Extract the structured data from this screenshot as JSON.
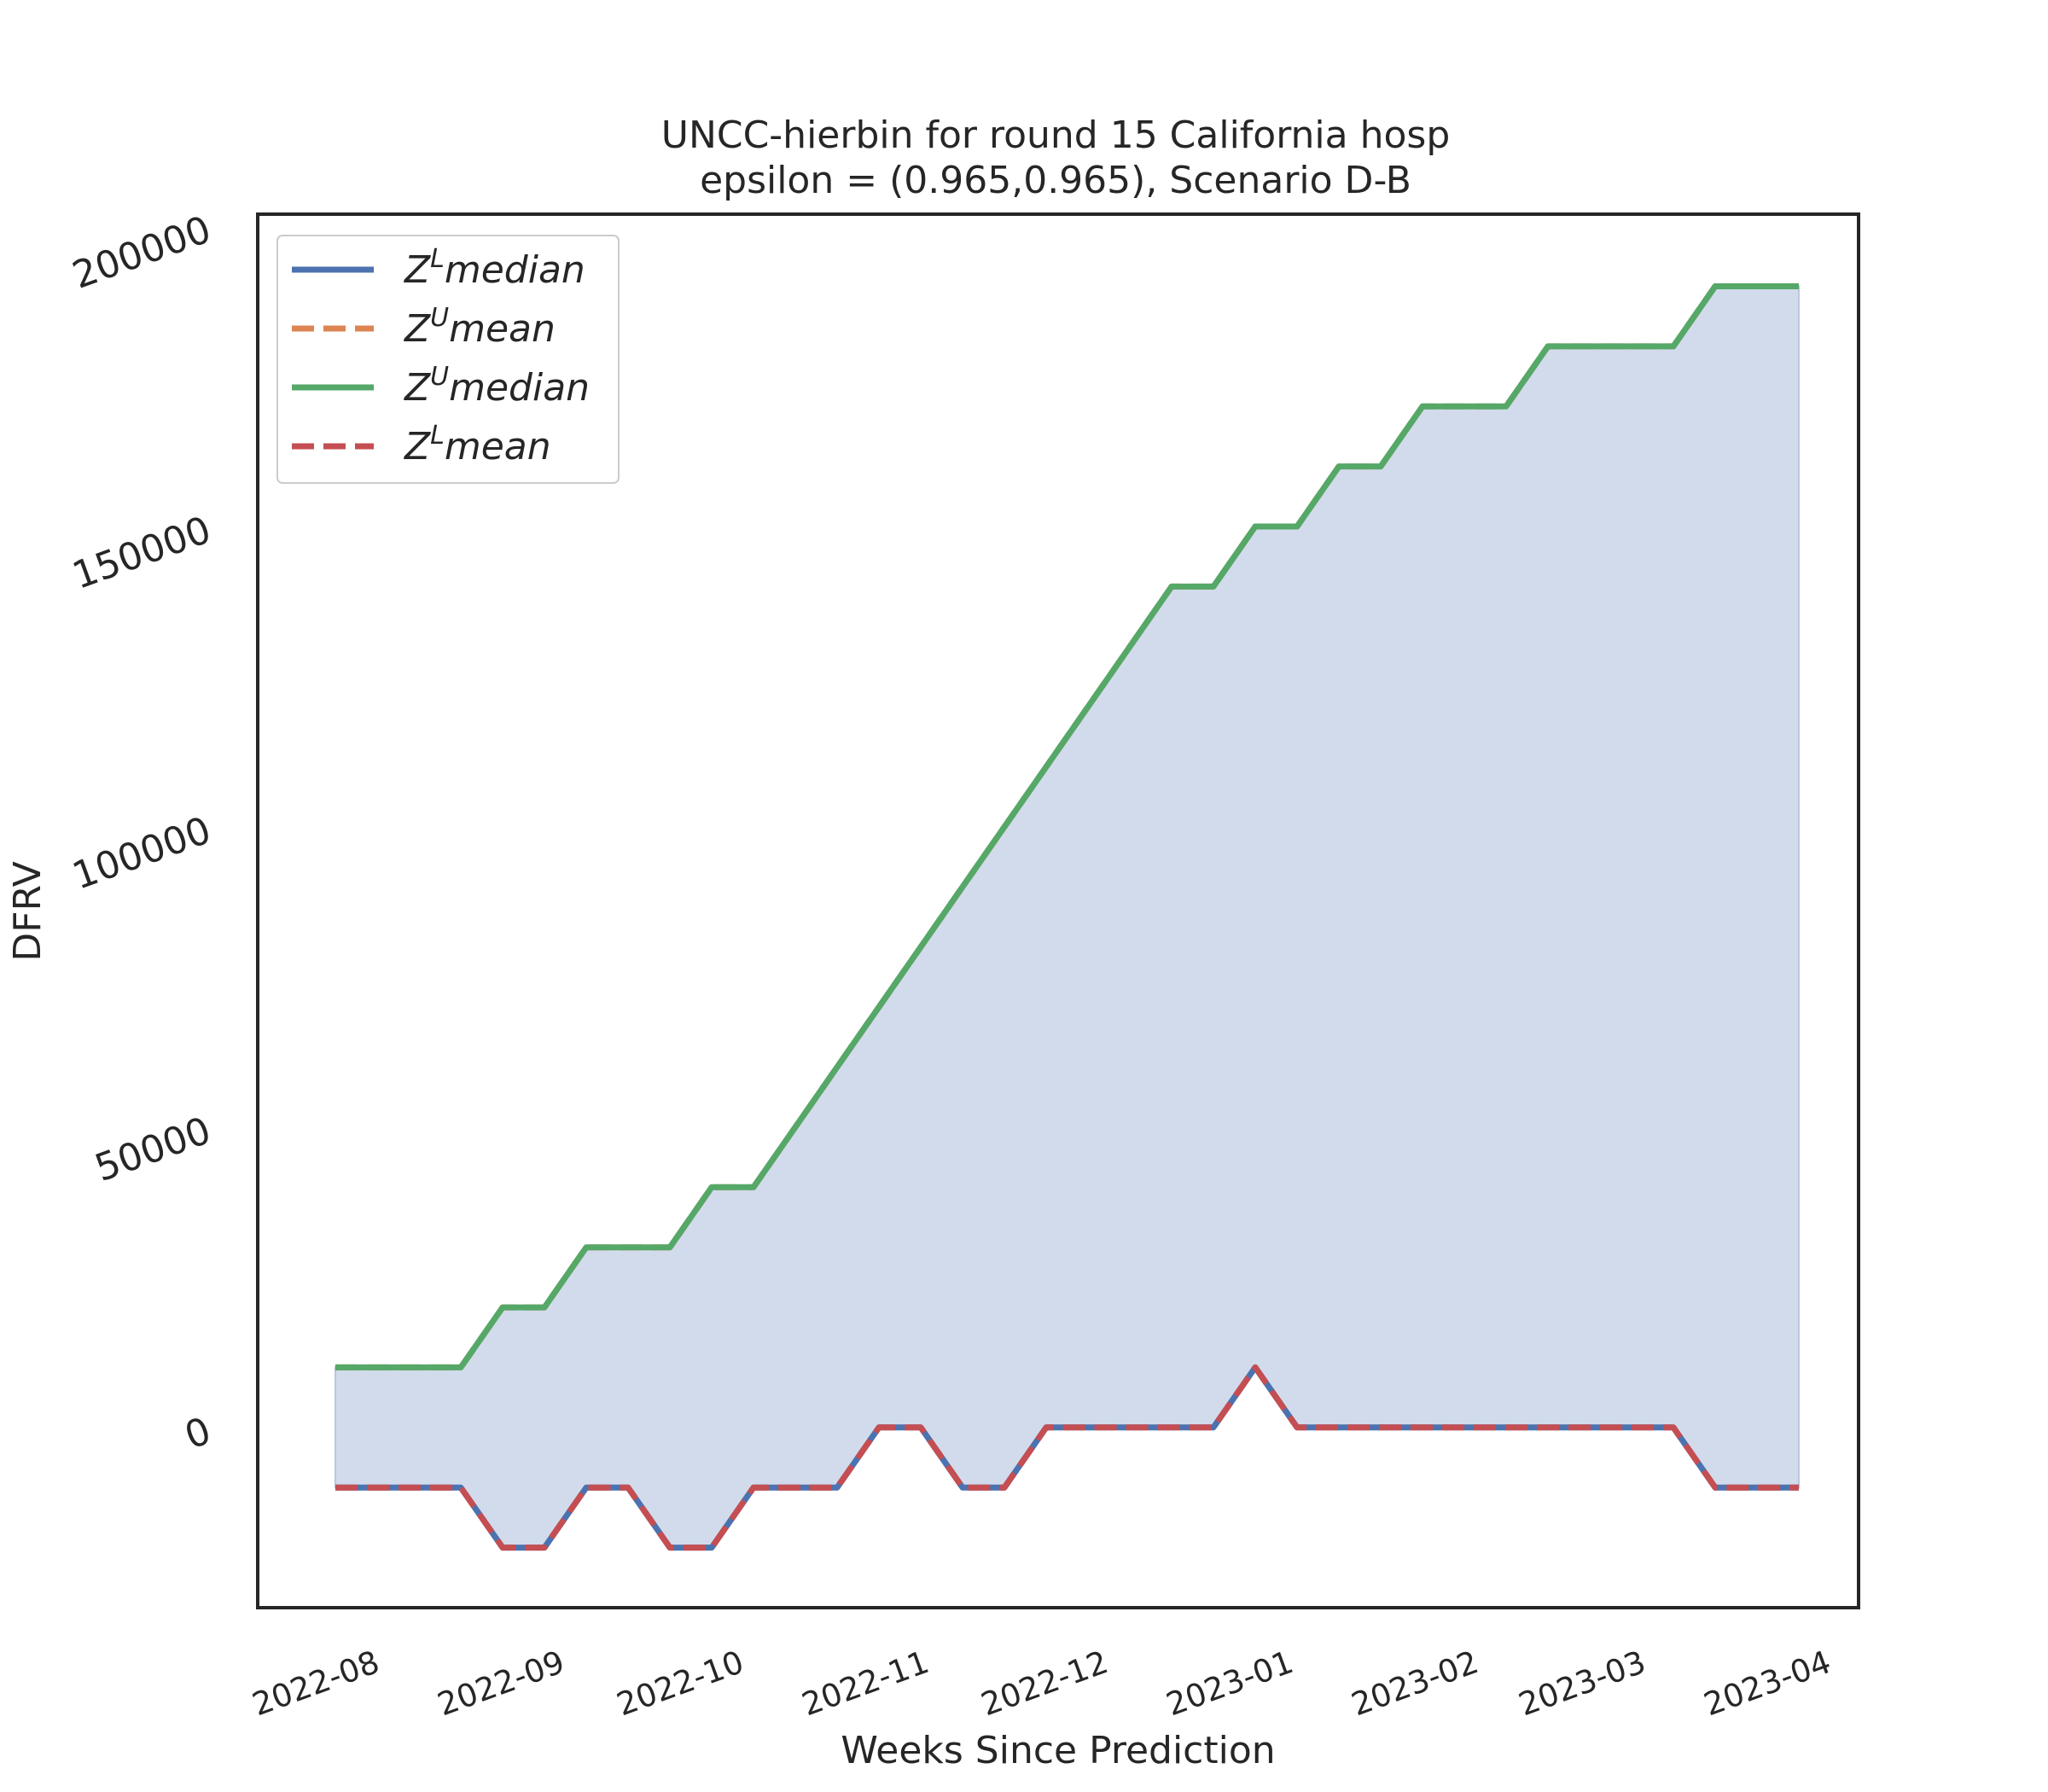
{
  "chart_data": {
    "type": "line",
    "title_line1": "UNCC-hierbin for round 15 California  hosp",
    "title_line2": "epsilon = (0.965,0.965), Scenario D-B",
    "xlabel": "Weeks Since Prediction",
    "ylabel": "DFRV",
    "ylim": [
      -30000,
      202000
    ],
    "y_ticks": [
      0,
      50000,
      100000,
      150000,
      200000
    ],
    "y_tick_labels": [
      "0",
      "50000",
      "100000",
      "150000",
      "200000"
    ],
    "xlim": [
      "2022-07-13",
      "2023-04-07"
    ],
    "x_ticks": [
      "2022-08-01",
      "2022-09-01",
      "2022-10-01",
      "2022-11-01",
      "2022-12-01",
      "2023-01-01",
      "2023-02-01",
      "2023-03-01",
      "2023-04-01"
    ],
    "x_tick_labels": [
      "2022-08",
      "2022-09",
      "2022-10",
      "2022-11",
      "2022-12",
      "2023-01",
      "2023-02",
      "2023-03",
      "2023-04"
    ],
    "grid": false,
    "legend_position": "top-left",
    "fill_color": "#d2dbeb",
    "dates": [
      "2022-07-26",
      "2022-08-02",
      "2022-08-09",
      "2022-08-16",
      "2022-08-23",
      "2022-08-30",
      "2022-09-06",
      "2022-09-13",
      "2022-09-20",
      "2022-09-27",
      "2022-10-04",
      "2022-10-11",
      "2022-10-18",
      "2022-10-25",
      "2022-11-01",
      "2022-11-08",
      "2022-11-15",
      "2022-11-22",
      "2022-11-29",
      "2022-12-06",
      "2022-12-13",
      "2022-12-20",
      "2022-12-27",
      "2023-01-03",
      "2023-01-10",
      "2023-01-17",
      "2023-01-24",
      "2023-01-31",
      "2023-02-07",
      "2023-02-14",
      "2023-02-21",
      "2023-02-28",
      "2023-03-07",
      "2023-03-14",
      "2023-03-21",
      "2023-03-28"
    ],
    "series": [
      {
        "name": "$Z^L median$",
        "color": "#4c72b0",
        "dash": "solid",
        "values": [
          -10000,
          -10000,
          -10000,
          -10000,
          -20000,
          -20000,
          -10000,
          -10000,
          -20000,
          -20000,
          -10000,
          -10000,
          -10000,
          0,
          0,
          -10000,
          -10000,
          0,
          0,
          0,
          0,
          0,
          10000,
          0,
          0,
          0,
          0,
          0,
          0,
          0,
          0,
          0,
          0,
          -10000,
          -10000,
          -10000
        ]
      },
      {
        "name": "$Z^U mean$",
        "color": "#dd8452",
        "dash": "dashed",
        "values": [
          10000,
          10000,
          10000,
          10000,
          20000,
          20000,
          30000,
          30000,
          30000,
          40000,
          40000,
          50000,
          60000,
          70000,
          80000,
          90000,
          100000,
          110000,
          120000,
          130000,
          140000,
          140000,
          150000,
          150000,
          160000,
          160000,
          170000,
          170000,
          170000,
          180000,
          180000,
          180000,
          180000,
          190000,
          190000,
          190000
        ]
      },
      {
        "name": "$Z^U median$",
        "color": "#55a868",
        "dash": "solid",
        "values": [
          10000,
          10000,
          10000,
          10000,
          20000,
          20000,
          30000,
          30000,
          30000,
          40000,
          40000,
          50000,
          60000,
          70000,
          80000,
          90000,
          100000,
          110000,
          120000,
          130000,
          140000,
          140000,
          150000,
          150000,
          160000,
          160000,
          170000,
          170000,
          170000,
          180000,
          180000,
          180000,
          180000,
          190000,
          190000,
          190000
        ]
      },
      {
        "name": "$Z^L mean$",
        "color": "#c44e52",
        "dash": "dashed",
        "values": [
          -10000,
          -10000,
          -10000,
          -10000,
          -20000,
          -20000,
          -10000,
          -10000,
          -20000,
          -20000,
          -10000,
          -10000,
          -10000,
          0,
          0,
          -10000,
          -10000,
          0,
          0,
          0,
          0,
          0,
          10000,
          0,
          0,
          0,
          0,
          0,
          0,
          0,
          0,
          0,
          0,
          -10000,
          -10000,
          -10000
        ]
      }
    ],
    "legend": [
      {
        "base": "Z",
        "sup": "L",
        "word": "median"
      },
      {
        "base": "Z",
        "sup": "U",
        "word": "mean"
      },
      {
        "base": "Z",
        "sup": "U",
        "word": "median"
      },
      {
        "base": "Z",
        "sup": "L",
        "word": "mean"
      }
    ]
  }
}
